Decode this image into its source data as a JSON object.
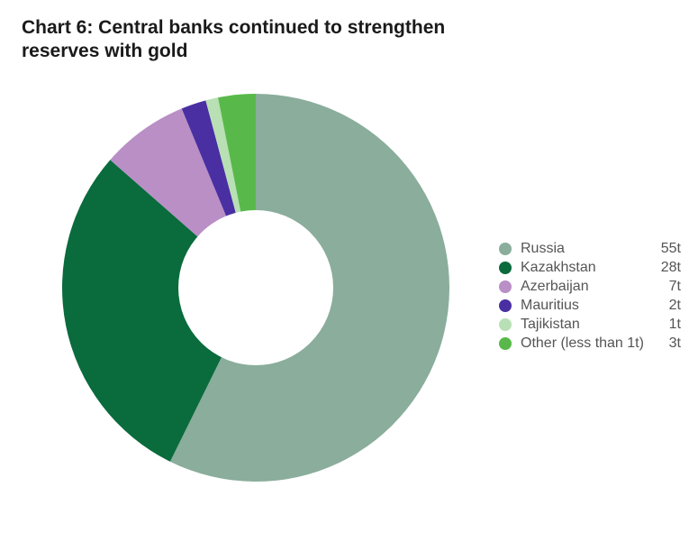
{
  "chart": {
    "type": "pie",
    "title": "Chart 6: Central banks continued to strengthen reserves with gold",
    "title_fontsize": 21,
    "title_fontweight": 700,
    "title_color": "#1a1a1a",
    "background_color": "#ffffff",
    "donut_outer_radius": 215,
    "donut_inner_radius_ratio": 0.4,
    "start_angle_deg": -90,
    "direction": "clockwise",
    "legend_position": "right",
    "legend_fontsize": 16,
    "legend_color": "#555555",
    "value_unit_suffix": "t",
    "slices": [
      {
        "label": "Russia",
        "value": 55,
        "display": "55t",
        "color": "#8aad9c"
      },
      {
        "label": "Kazakhstan",
        "value": 28,
        "display": "28t",
        "color": "#0a6b3d"
      },
      {
        "label": "Azerbaijan",
        "value": 7,
        "display": "7t",
        "color": "#b98fc6"
      },
      {
        "label": "Mauritius",
        "value": 2,
        "display": "2t",
        "color": "#4a2fa3"
      },
      {
        "label": "Tajikistan",
        "value": 1,
        "display": "1t",
        "color": "#b8e0b4"
      },
      {
        "label": "Other (less than 1t)",
        "value": 3,
        "display": "3t",
        "color": "#58b94a"
      }
    ]
  }
}
